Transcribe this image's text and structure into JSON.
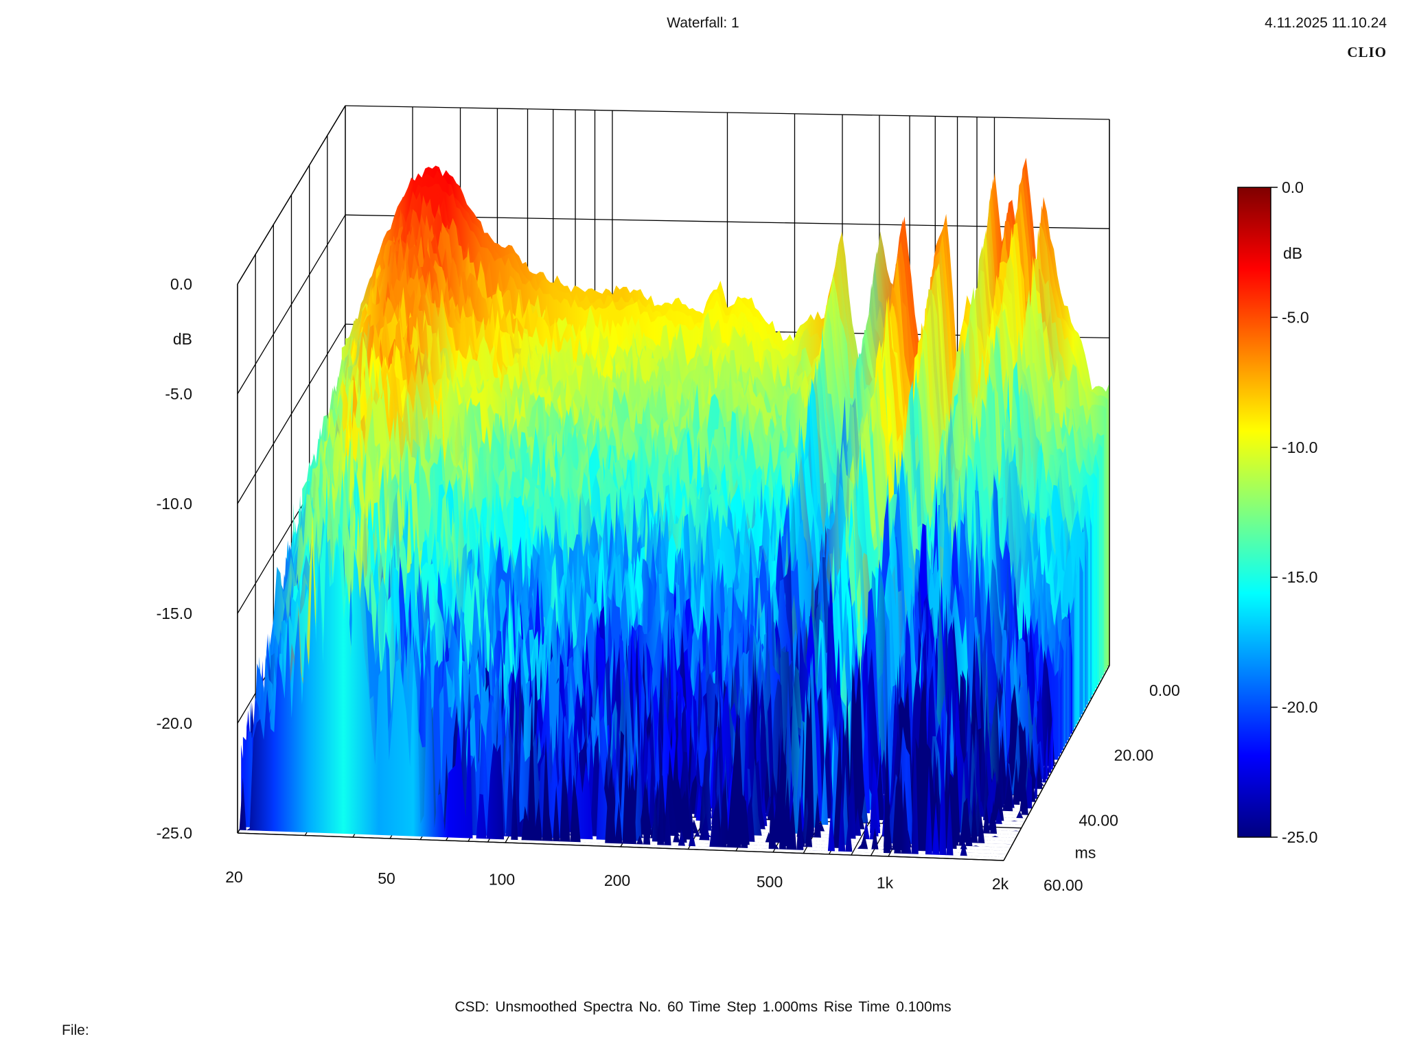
{
  "header": {
    "title": "Waterfall: 1",
    "datetime": "4.11.2025 11.10.24",
    "brand": "CLIO"
  },
  "footer": {
    "settings": "CSD:   Unsmoothed   Spectra No. 60   Time Step 1.000ms   Rise Time 0.100ms",
    "file": "File:"
  },
  "colors": {
    "colormap": [
      "#7f0000",
      "#ff0000",
      "#ff7f00",
      "#ffff00",
      "#7fff7f",
      "#00ffff",
      "#007fff",
      "#0000ff",
      "#00007f"
    ],
    "axis": "#000000"
  },
  "chart_data": {
    "type": "waterfall",
    "title": "Waterfall: 1",
    "x_axis": {
      "scale": "log",
      "range": [
        20,
        2000
      ],
      "ticks": [
        "20",
        "50",
        "100",
        "200",
        "500",
        "1k",
        "2k"
      ],
      "tick_values": [
        20,
        50,
        100,
        200,
        500,
        1000,
        2000
      ]
    },
    "y_axis": {
      "label": "dB",
      "range": [
        -25,
        0
      ],
      "ticks": [
        "0.0",
        "-5.0",
        "-10.0",
        "-15.0",
        "-20.0",
        "-25.0"
      ]
    },
    "z_axis": {
      "label": "ms",
      "range": [
        0,
        60
      ],
      "ticks": [
        "0.00",
        "20.00",
        "40.00",
        "60.00"
      ]
    },
    "colorbar": {
      "label": "dB",
      "range": [
        -25,
        0
      ],
      "ticks": [
        "0.0",
        "-5.0",
        "-10.0",
        "-15.0",
        "-20.0",
        "-25.0"
      ]
    },
    "spectra_count": 60,
    "time_step_ms": 1.0,
    "rise_time_ms": 0.1,
    "first_spectrum": {
      "freq_hz": [
        20,
        22,
        25,
        30,
        35,
        40,
        45,
        50,
        55,
        60,
        70,
        80,
        90,
        100,
        110,
        120,
        130,
        150,
        170,
        190,
        200,
        220,
        250,
        280,
        300,
        330,
        360,
        400,
        430,
        460,
        500,
        540,
        580,
        620,
        660,
        700,
        750,
        800,
        850,
        900,
        950,
        1000,
        1050,
        1100,
        1150,
        1200,
        1250,
        1300,
        1350,
        1400,
        1500,
        1600,
        1700,
        1800,
        1900,
        2000
      ],
      "level_db": [
        -10.5,
        -9,
        -6,
        -3,
        -2.5,
        -3.5,
        -5,
        -6,
        -6,
        -7,
        -7.5,
        -8,
        -8,
        -8,
        -8,
        -8,
        -8.5,
        -8.5,
        -9,
        -7.5,
        -8.5,
        -8,
        -9,
        -10,
        -10,
        -9,
        -9,
        -5,
        -10,
        -12,
        -5,
        -8,
        -4,
        -9,
        -12,
        -6,
        -4,
        -11,
        -8,
        -9,
        -6,
        -2,
        -6,
        -3,
        -5,
        -1,
        -4,
        -7,
        -3,
        -5,
        -8,
        -9,
        -10,
        -12,
        -12,
        -12
      ]
    }
  }
}
